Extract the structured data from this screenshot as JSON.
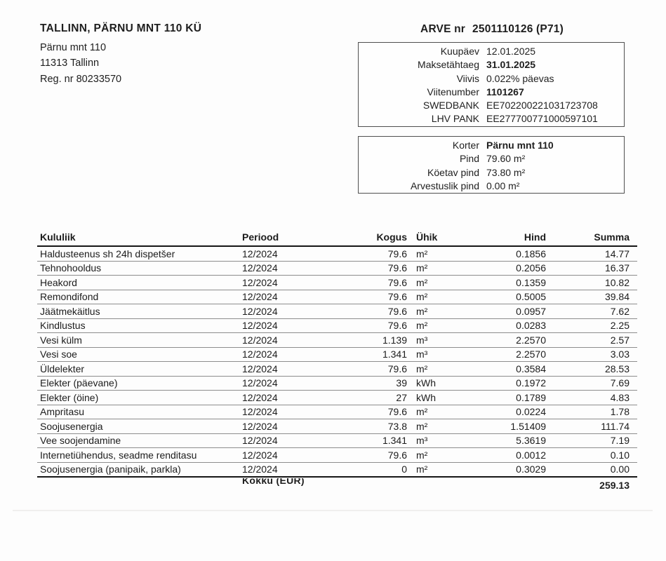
{
  "sender": {
    "name": "TALLINN, PÄRNU MNT 110 KÜ",
    "address_line1": "Pärnu mnt 110",
    "address_line2": "11313 Tallinn",
    "reg_line": "Reg. nr 80233570"
  },
  "invoice_title": {
    "label": "ARVE nr",
    "number": "2501110126 (P71)"
  },
  "details_box": {
    "rows": [
      {
        "label": "Kuupäev",
        "value": "12.01.2025"
      },
      {
        "label": "Maksetähtaeg",
        "value": "31.01.2025"
      },
      {
        "label": "Viivis",
        "value": "0.022% päevas"
      },
      {
        "label": "Viitenumber",
        "value": "1101267"
      },
      {
        "label": "SWEDBANK",
        "value": "EE702200221031723708"
      },
      {
        "label": "LHV PANK",
        "value": "EE277700771000597101"
      }
    ]
  },
  "property_box": {
    "rows": [
      {
        "label": "Korter",
        "value": "Pärnu mnt 110"
      },
      {
        "label": "Pind",
        "value": "79.60 m²"
      },
      {
        "label": "Köetav pind",
        "value": "73.80 m²"
      },
      {
        "label": "Arvestuslik pind",
        "value": "0.00 m²"
      }
    ]
  },
  "table": {
    "headers": [
      "Kululiik",
      "Periood",
      "Kogus",
      "Ühik",
      "Hind",
      "Summa"
    ],
    "rows": [
      [
        "Haldusteenus sh 24h dispetšer",
        "12/2024",
        "79.6",
        "m²",
        "0.1856",
        "14.77"
      ],
      [
        "Tehnohooldus",
        "12/2024",
        "79.6",
        "m²",
        "0.2056",
        "16.37"
      ],
      [
        "Heakord",
        "12/2024",
        "79.6",
        "m²",
        "0.1359",
        "10.82"
      ],
      [
        "Remondifond",
        "12/2024",
        "79.6",
        "m²",
        "0.5005",
        "39.84"
      ],
      [
        "Jäätmekäitlus",
        "12/2024",
        "79.6",
        "m²",
        "0.0957",
        "7.62"
      ],
      [
        "Kindlustus",
        "12/2024",
        "79.6",
        "m²",
        "0.0283",
        "2.25"
      ],
      [
        "Vesi külm",
        "12/2024",
        "1.139",
        "m³",
        "2.2570",
        "2.57"
      ],
      [
        "Vesi soe",
        "12/2024",
        "1.341",
        "m³",
        "2.2570",
        "3.03"
      ],
      [
        "Üldelekter",
        "12/2024",
        "79.6",
        "m²",
        "0.3584",
        "28.53"
      ],
      [
        "Elekter (päevane)",
        "12/2024",
        "39",
        "kWh",
        "0.1972",
        "7.69"
      ],
      [
        "Elekter (öine)",
        "12/2024",
        "27",
        "kWh",
        "0.1789",
        "4.83"
      ],
      [
        "Ampritasu",
        "12/2024",
        "79.6",
        "m²",
        "0.0224",
        "1.78"
      ],
      [
        "Soojusenergia",
        "12/2024",
        "73.8",
        "m²",
        "1.51409",
        "111.74"
      ],
      [
        "Vee soojendamine",
        "12/2024",
        "1.341",
        "m³",
        "5.3619",
        "7.19"
      ],
      [
        "Internetiühendus, seadme renditasu",
        "12/2024",
        "79.6",
        "m²",
        "0.0012",
        "0.10"
      ],
      [
        "Soojusenergia (panipaik, parkla)",
        "12/2024",
        "0",
        "m²",
        "0.3029",
        "0.00"
      ]
    ],
    "total_label": "Kokku (EUR)",
    "total_value": "259.13"
  },
  "colors": {
    "paper": "#fdfdfd",
    "ink": "#1e1e1e",
    "rule_light": "#8d8d8d",
    "rule_heavy": "#161616",
    "box_border": "#4f4f4f"
  }
}
